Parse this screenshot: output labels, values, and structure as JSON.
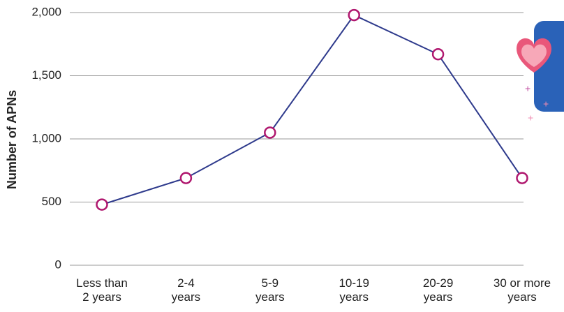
{
  "chart_data": {
    "type": "line",
    "ylabel": "Number of APNs",
    "categories": [
      "Less than\n2 years",
      "2-4\nyears",
      "5-9\nyears",
      "10-19\nyears",
      "20-29\nyears",
      "30 or more\nyears"
    ],
    "series": [
      {
        "name": "APNs",
        "color": "#2e3a8c",
        "marker_color": "#b0186f",
        "values": [
          480,
          690,
          1050,
          1980,
          1670,
          690
        ]
      }
    ],
    "ylim": [
      0,
      2000
    ],
    "yticks": [
      0,
      500,
      {
        "value": 1000,
        "label": "1,000"
      },
      {
        "value": 1500,
        "label": "1,500"
      },
      {
        "value": 2000,
        "label": "2,000"
      }
    ],
    "grid": true
  }
}
